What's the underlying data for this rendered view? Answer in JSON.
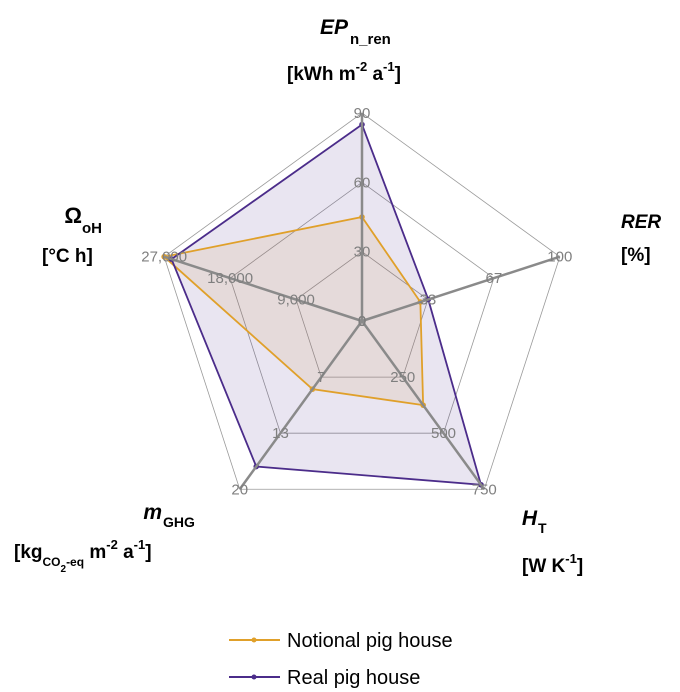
{
  "chart_data": {
    "type": "radar",
    "axes": [
      {
        "key": "ep",
        "ticks": [
          "0",
          "30",
          "60",
          "90"
        ],
        "max": 90
      },
      {
        "key": "rer",
        "ticks": [
          "0",
          "33",
          "67",
          "100"
        ],
        "max": 100
      },
      {
        "key": "ht",
        "ticks": [
          "0",
          "250",
          "500",
          "750"
        ],
        "max": 750
      },
      {
        "key": "m",
        "ticks": [
          "0",
          "7",
          "13",
          "20"
        ],
        "max": 20
      },
      {
        "key": "om",
        "ticks": [
          "0",
          "9,000",
          "18,000",
          "27,000"
        ],
        "max": 27000
      }
    ],
    "axis_titles": {
      "ep": {
        "line1_main": "EP",
        "line1_sub": "n_ren",
        "line2_a": "[kWh m",
        "line2_sup1": "-2",
        "line2_b": " a",
        "line2_sup2": "-1",
        "line2_c": "]"
      },
      "rer": {
        "line1": "RER",
        "line2": "[%]"
      },
      "ht": {
        "line1_main": "H",
        "line1_sub": "T",
        "line2_a": "[W K",
        "line2_sup": "-1",
        "line2_b": "]"
      },
      "m": {
        "line1_main": "m",
        "line1_sub": "GHG",
        "line2_a": "[kg",
        "line2_sub": "CO",
        "line2_subsub": "2",
        "line2_sub2": "-eq",
        "line2_b": " m",
        "line2_sup1": "-2",
        "line2_c": " a",
        "line2_sup2": "-1",
        "line2_d": "]"
      },
      "om": {
        "line1_main": "Ω",
        "line1_sub": "oH",
        "line2": "[°C h]"
      }
    },
    "series": [
      {
        "name": "Notional pig house",
        "color": "#e0a02a",
        "fill": "rgba(224,160,42,0.12)",
        "values": [
          45,
          29.5,
          375,
          8.1,
          27000
        ]
      },
      {
        "name": "Real pig house",
        "color": "#4b2c8a",
        "fill": "rgba(75,44,138,0.12)",
        "values": [
          85,
          33.5,
          730,
          17.3,
          26000
        ]
      }
    ],
    "grid": true,
    "legend_position": "bottom"
  }
}
